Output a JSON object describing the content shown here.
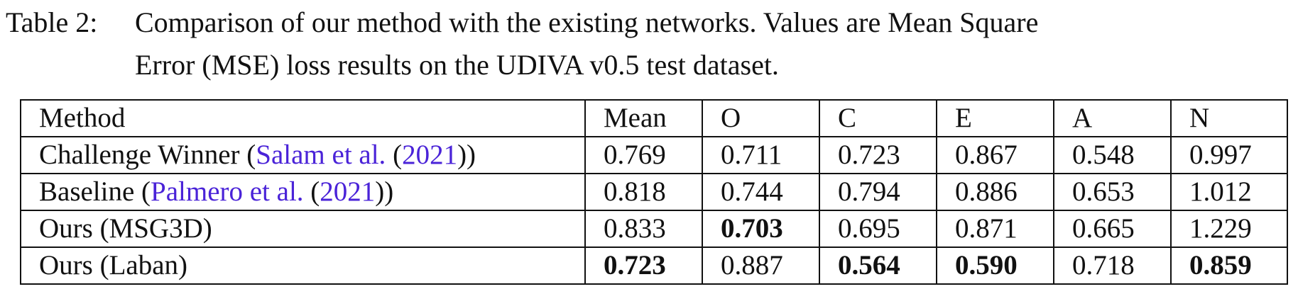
{
  "caption": {
    "label": "Table 2:",
    "line1": "Comparison of our method with the existing networks. Values are Mean Square",
    "line2": "Error (MSE) loss results on the UDIVA v0.5 test dataset."
  },
  "table": {
    "headers": [
      "Method",
      "Mean",
      "O",
      "C",
      "E",
      "A",
      "N"
    ],
    "rows": [
      {
        "method_prefix": "Challenge Winner (",
        "cite_authors": "Salam et al.",
        "cite_year_open": " (",
        "cite_year": "2021",
        "cite_close": "))",
        "values": [
          "0.769",
          "0.711",
          "0.723",
          "0.867",
          "0.548",
          "0.997"
        ]
      },
      {
        "method_prefix": "Baseline (",
        "cite_authors": "Palmero et al.",
        "cite_year_open": " (",
        "cite_year": "2021",
        "cite_close": "))",
        "values": [
          "0.818",
          "0.744",
          "0.794",
          "0.886",
          "0.653",
          "1.012"
        ]
      },
      {
        "method": "Ours (MSG3D)",
        "values": [
          "0.833",
          "0.703",
          "0.695",
          "0.871",
          "0.665",
          "1.229"
        ],
        "bold": [
          false,
          true,
          false,
          false,
          false,
          false
        ]
      },
      {
        "method": "Ours (Laban)",
        "values": [
          "0.723",
          "0.887",
          "0.564",
          "0.590",
          "0.718",
          "0.859"
        ],
        "bold": [
          true,
          false,
          true,
          true,
          false,
          true
        ]
      }
    ]
  },
  "colors": {
    "citation_link": "#4a23d8",
    "text": "#111111"
  }
}
